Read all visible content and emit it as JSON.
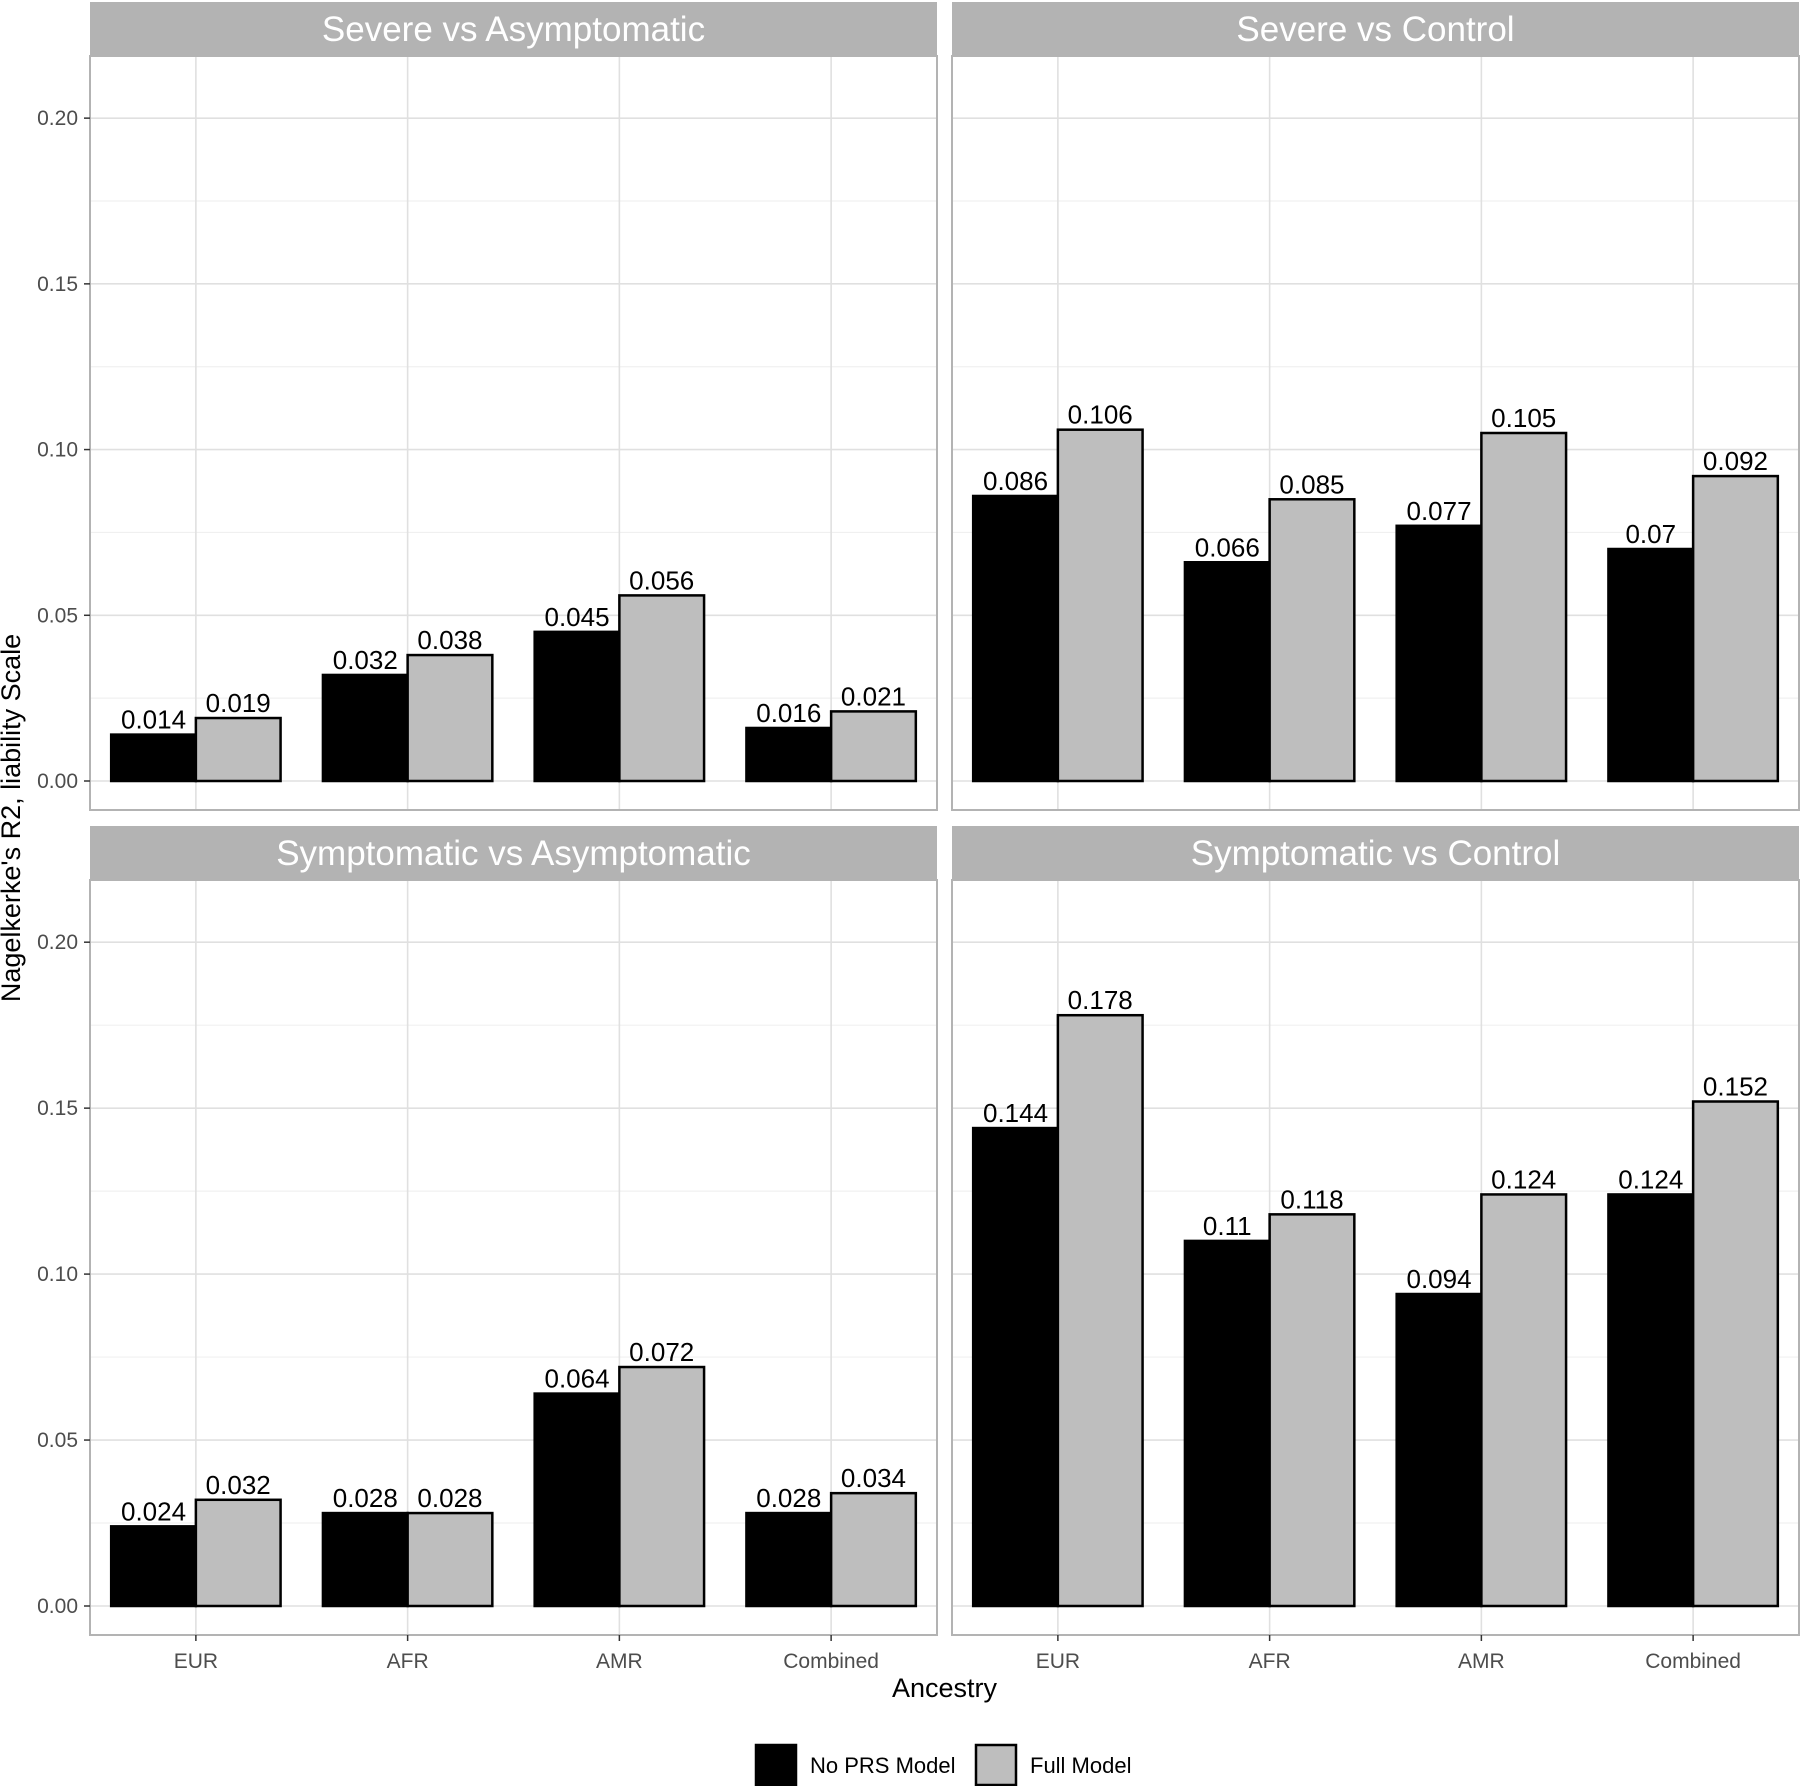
{
  "chart_data": {
    "type": "bar",
    "title": "",
    "xlabel": "Ancestry",
    "ylabel": "Nagelkerke's R2, liability Scale",
    "categories": [
      "EUR",
      "AFR",
      "AMR",
      "Combined"
    ],
    "ylim": [
      0,
      0.21
    ],
    "yticks": [
      "0.00",
      "0.05",
      "0.10",
      "0.15",
      "0.20"
    ],
    "grid": true,
    "legend_position": "bottom",
    "legend": [
      "No PRS Model",
      "Full Model"
    ],
    "series_colors": [
      "#000000",
      "#bebebe"
    ],
    "panels": [
      {
        "title": "Severe vs Asymptomatic",
        "series": [
          {
            "name": "No PRS Model",
            "values": [
              0.014,
              0.032,
              0.045,
              0.016
            ],
            "labels": [
              "0.014",
              "0.032",
              "0.045",
              "0.016"
            ]
          },
          {
            "name": "Full Model",
            "values": [
              0.019,
              0.038,
              0.056,
              0.021
            ],
            "labels": [
              "0.019",
              "0.038",
              "0.056",
              "0.021"
            ]
          }
        ]
      },
      {
        "title": "Severe vs Control",
        "series": [
          {
            "name": "No PRS Model",
            "values": [
              0.086,
              0.066,
              0.077,
              0.07
            ],
            "labels": [
              "0.086",
              "0.066",
              "0.077",
              "0.07"
            ]
          },
          {
            "name": "Full Model",
            "values": [
              0.106,
              0.085,
              0.105,
              0.092
            ],
            "labels": [
              "0.106",
              "0.085",
              "0.105",
              "0.092"
            ]
          }
        ]
      },
      {
        "title": "Symptomatic vs Asymptomatic",
        "series": [
          {
            "name": "No PRS Model",
            "values": [
              0.024,
              0.028,
              0.064,
              0.028
            ],
            "labels": [
              "0.024",
              "0.028",
              "0.064",
              "0.028"
            ]
          },
          {
            "name": "Full Model",
            "values": [
              0.032,
              0.028,
              0.072,
              0.034
            ],
            "labels": [
              "0.032",
              "0.028",
              "0.072",
              "0.034"
            ]
          }
        ]
      },
      {
        "title": "Symptomatic vs Control",
        "series": [
          {
            "name": "No PRS Model",
            "values": [
              0.144,
              0.11,
              0.094,
              0.124
            ],
            "labels": [
              "0.144",
              "0.11",
              "0.094",
              "0.124"
            ]
          },
          {
            "name": "Full Model",
            "values": [
              0.178,
              0.118,
              0.124,
              0.152
            ],
            "labels": [
              "0.178",
              "0.118",
              "0.124",
              "0.152"
            ]
          }
        ]
      }
    ]
  }
}
